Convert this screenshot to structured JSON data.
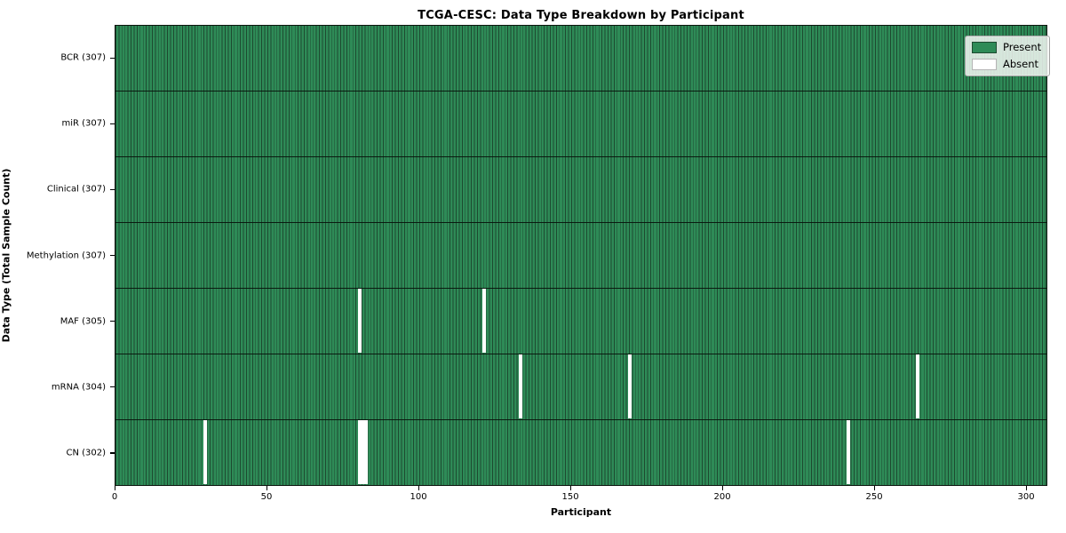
{
  "title": "TCGA-CESC: Data Type Breakdown by Participant",
  "x_axis": {
    "label": "Participant",
    "ticks": [
      0,
      50,
      100,
      150,
      200,
      250,
      300
    ]
  },
  "y_axis": {
    "label": "Data Type (Total Sample Count)"
  },
  "legend": {
    "position": "upper right",
    "items": [
      {
        "name": "present",
        "label": "Present",
        "color": "#2e8b57",
        "edge": "#1d4a30"
      },
      {
        "name": "absent",
        "label": "Absent",
        "color": "#ffffff",
        "edge": "#b5b5b5"
      }
    ]
  },
  "colors": {
    "present_fill": "#2e8b57",
    "bar_edge": "#1d4a30",
    "absent_fill": "#ffffff",
    "spine": "#0c150e",
    "background": "#ffffff",
    "text": "#000000"
  },
  "chart_data": {
    "type": "heatmap",
    "title": "TCGA-CESC: Data Type Breakdown by Participant",
    "xlabel": "Participant",
    "ylabel": "Data Type (Total Sample Count)",
    "xlim": [
      0,
      307
    ],
    "n_participants": 307,
    "x_ticks": [
      0,
      50,
      100,
      150,
      200,
      250,
      300
    ],
    "value_encoding": {
      "present": "#2e8b57",
      "absent": "#ffffff"
    },
    "grid": false,
    "legend_position": "upper right",
    "rows": [
      {
        "label": "BCR (307)",
        "data_type": "BCR",
        "total_samples": 307,
        "absent_participants": []
      },
      {
        "label": "miR (307)",
        "data_type": "miR",
        "total_samples": 307,
        "absent_participants": []
      },
      {
        "label": "Clinical (307)",
        "data_type": "Clinical",
        "total_samples": 307,
        "absent_participants": []
      },
      {
        "label": "Methylation (307)",
        "data_type": "Methylation",
        "total_samples": 307,
        "absent_participants": []
      },
      {
        "label": "MAF (305)",
        "data_type": "MAF",
        "total_samples": 305,
        "absent_participants": [
          80,
          121
        ]
      },
      {
        "label": "mRNA (304)",
        "data_type": "mRNA",
        "total_samples": 304,
        "absent_participants": [
          133,
          169,
          264
        ]
      },
      {
        "label": "CN (302)",
        "data_type": "CN",
        "total_samples": 302,
        "absent_participants": [
          29,
          80,
          81,
          82,
          241
        ]
      }
    ]
  }
}
